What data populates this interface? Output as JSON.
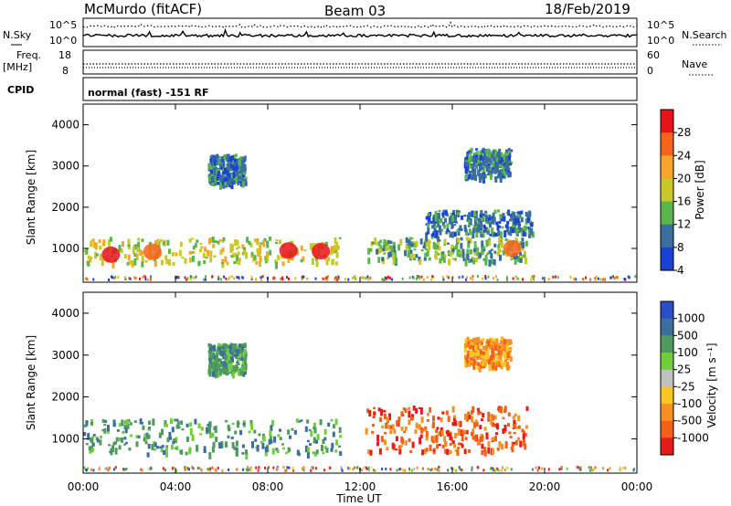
{
  "header": {
    "station": "McMurdo (fitACF)",
    "beam": "Beam 03",
    "date": "18/Feb/2019"
  },
  "noise_panel": {
    "left_label": "N.Sky",
    "right_label": "N.Search",
    "left_ticks": [
      "10^5",
      "10^0"
    ],
    "right_ticks": [
      "10^5",
      "10^0"
    ]
  },
  "freq_panel": {
    "left_label_line1": "Freq.",
    "left_label_line2": "[MHz]",
    "right_label": "Nave",
    "left_ticks": [
      "18",
      "8"
    ],
    "right_ticks": [
      "60",
      "0"
    ]
  },
  "cpid_panel": {
    "label": "CPID",
    "text": "normal (fast) -151 RF"
  },
  "chart_data": [
    {
      "type": "heatmap",
      "ylabel": "Slant Range [km]",
      "ylim": [
        180,
        4500
      ],
      "yticks": [
        "1000",
        "2000",
        "3000",
        "4000"
      ],
      "x_range_hours": [
        0,
        24
      ],
      "colorbar": {
        "label": "Power [dB]",
        "ticks": [
          "28",
          "24",
          "20",
          "16",
          "12",
          "8",
          "4"
        ],
        "colors": [
          "#e8121b",
          "#f7631a",
          "#f8a52a",
          "#c8c829",
          "#58b64a",
          "#3a6e9e",
          "#1a40d8"
        ]
      },
      "echo_regions": [
        {
          "t0": 0.0,
          "t1": 11.2,
          "r0": 620,
          "r1": 1250,
          "level": 3
        },
        {
          "t0": 12.2,
          "t1": 19.2,
          "r0": 680,
          "r1": 1250,
          "level": 4
        },
        {
          "t0": 14.8,
          "t1": 19.5,
          "r0": 1300,
          "r1": 1900,
          "level": 5
        },
        {
          "t0": 5.4,
          "t1": 7.0,
          "r0": 2550,
          "r1": 3250,
          "level": 5
        },
        {
          "t0": 16.5,
          "t1": 18.5,
          "r0": 2700,
          "r1": 3400,
          "level": 5
        }
      ],
      "hot_spots": [
        {
          "t": 1.2,
          "r": 850,
          "level": 0
        },
        {
          "t": 3.0,
          "r": 920,
          "level": 1
        },
        {
          "t": 8.9,
          "r": 950,
          "level": 0
        },
        {
          "t": 10.3,
          "r": 930,
          "level": 0
        },
        {
          "t": 18.6,
          "r": 1000,
          "level": 1
        }
      ]
    },
    {
      "type": "heatmap",
      "ylabel": "Slant Range [km]",
      "ylim": [
        180,
        4500
      ],
      "yticks": [
        "1000",
        "2000",
        "3000",
        "4000"
      ],
      "xlabel": "Time UT",
      "xticks": [
        "00:00",
        "04:00",
        "08:00",
        "12:00",
        "16:00",
        "20:00",
        "00:00"
      ],
      "x_range_hours": [
        0,
        24
      ],
      "colorbar": {
        "label": "Velocity [m s⁻¹]",
        "ticks": [
          "1000",
          "500",
          "100",
          "25",
          "-25",
          "-100",
          "-500",
          "-1000"
        ],
        "colors": [
          "#2a4ec9",
          "#3a6e9e",
          "#4f9a5d",
          "#6fcf3a",
          "#c0c0c0",
          "#f8c820",
          "#f79020",
          "#f56018",
          "#e51b1b"
        ]
      },
      "echo_regions": [
        {
          "t0": 0.0,
          "t1": 11.2,
          "r0": 620,
          "r1": 1450,
          "level": 2
        },
        {
          "t0": 12.2,
          "t1": 19.2,
          "r0": 680,
          "r1": 1750,
          "level": 7
        },
        {
          "t0": 5.4,
          "t1": 7.0,
          "r0": 2550,
          "r1": 3250,
          "level": 2
        },
        {
          "t0": 16.5,
          "t1": 18.5,
          "r0": 2700,
          "r1": 3400,
          "level": 6
        }
      ]
    }
  ]
}
